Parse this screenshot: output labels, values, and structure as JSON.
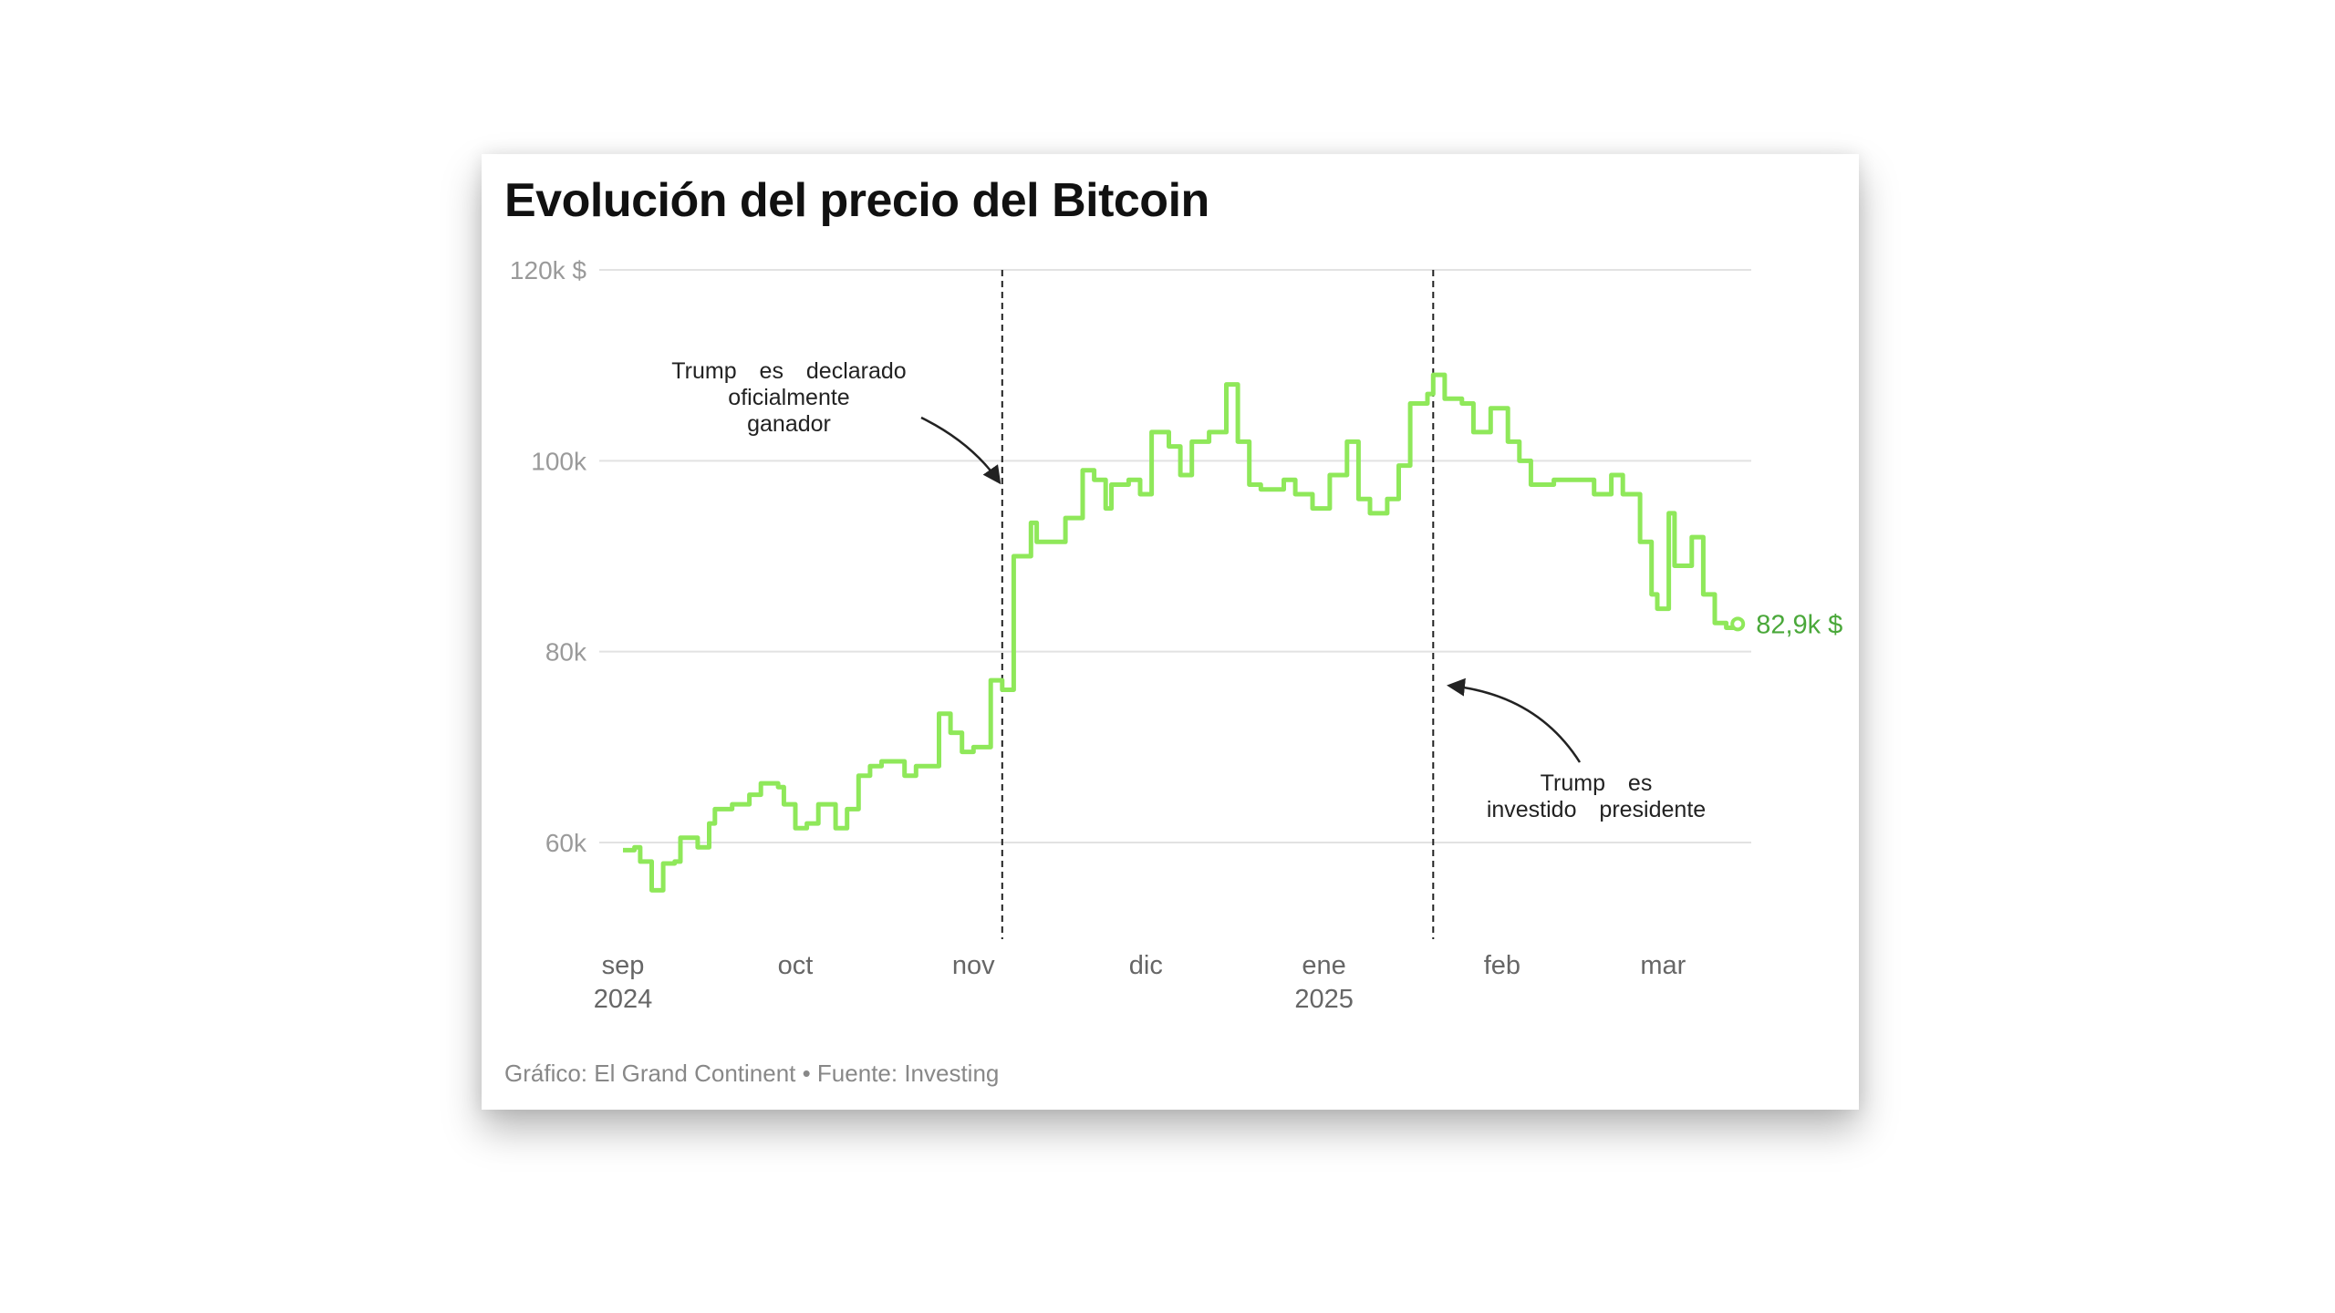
{
  "title": "Evolución del precio del Bitcoin",
  "footer": "Gráfico: El Grand Continent • Fuente: Investing",
  "chart_data": {
    "type": "line",
    "step": true,
    "title": "Evolución del precio del Bitcoin",
    "ylabel": "",
    "xlabel": "",
    "ylim": [
      50,
      120
    ],
    "yticks": [
      {
        "value": 120,
        "label": "120k $"
      },
      {
        "value": 100,
        "label": "100k"
      },
      {
        "value": 80,
        "label": "80k"
      },
      {
        "value": 60,
        "label": "60k"
      }
    ],
    "xticks": [
      {
        "date": "2024-09-01",
        "label": "sep",
        "year": "2024"
      },
      {
        "date": "2024-10-01",
        "label": "oct"
      },
      {
        "date": "2024-11-01",
        "label": "nov"
      },
      {
        "date": "2024-12-01",
        "label": "dic"
      },
      {
        "date": "2025-01-01",
        "label": "ene",
        "year": "2025"
      },
      {
        "date": "2025-02-01",
        "label": "feb"
      },
      {
        "date": "2025-03-01",
        "label": "mar"
      }
    ],
    "grid": true,
    "line_color": "#8fe85a",
    "label_color": "#4aa83a",
    "unit": "k $",
    "points": [
      [
        "2024-09-01",
        59.2
      ],
      [
        "2024-09-03",
        59.5
      ],
      [
        "2024-09-04",
        58
      ],
      [
        "2024-09-06",
        55
      ],
      [
        "2024-09-08",
        57.8
      ],
      [
        "2024-09-10",
        58
      ],
      [
        "2024-09-11",
        60.5
      ],
      [
        "2024-09-14",
        59.5
      ],
      [
        "2024-09-16",
        62
      ],
      [
        "2024-09-17",
        63.5
      ],
      [
        "2024-09-20",
        64
      ],
      [
        "2024-09-23",
        65
      ],
      [
        "2024-09-25",
        66.2
      ],
      [
        "2024-09-28",
        65.8
      ],
      [
        "2024-09-29",
        64
      ],
      [
        "2024-10-01",
        61.5
      ],
      [
        "2024-10-03",
        62
      ],
      [
        "2024-10-05",
        64
      ],
      [
        "2024-10-08",
        61.5
      ],
      [
        "2024-10-10",
        63.5
      ],
      [
        "2024-10-12",
        67
      ],
      [
        "2024-10-14",
        68
      ],
      [
        "2024-10-16",
        68.5
      ],
      [
        "2024-10-18",
        68.5
      ],
      [
        "2024-10-20",
        67
      ],
      [
        "2024-10-22",
        68
      ],
      [
        "2024-10-24",
        68
      ],
      [
        "2024-10-26",
        73.5
      ],
      [
        "2024-10-28",
        71.5
      ],
      [
        "2024-10-30",
        69.5
      ],
      [
        "2024-11-01",
        70
      ],
      [
        "2024-11-04",
        77
      ],
      [
        "2024-11-06",
        76
      ],
      [
        "2024-11-08",
        90
      ],
      [
        "2024-11-11",
        93.5
      ],
      [
        "2024-11-12",
        91.5
      ],
      [
        "2024-11-15",
        91.5
      ],
      [
        "2024-11-17",
        94
      ],
      [
        "2024-11-20",
        99
      ],
      [
        "2024-11-22",
        98
      ],
      [
        "2024-11-24",
        95
      ],
      [
        "2024-11-25",
        97.5
      ],
      [
        "2024-11-28",
        98
      ],
      [
        "2024-11-30",
        96.5
      ],
      [
        "2024-12-02",
        103
      ],
      [
        "2024-12-05",
        101.5
      ],
      [
        "2024-12-07",
        98.5
      ],
      [
        "2024-12-09",
        102
      ],
      [
        "2024-12-12",
        103
      ],
      [
        "2024-12-15",
        108
      ],
      [
        "2024-12-17",
        102
      ],
      [
        "2024-12-19",
        97.5
      ],
      [
        "2024-12-21",
        97
      ],
      [
        "2024-12-25",
        98
      ],
      [
        "2024-12-27",
        96.5
      ],
      [
        "2024-12-30",
        95
      ],
      [
        "2025-01-02",
        98.5
      ],
      [
        "2025-01-05",
        102
      ],
      [
        "2025-01-07",
        96
      ],
      [
        "2025-01-09",
        94.5
      ],
      [
        "2025-01-12",
        96
      ],
      [
        "2025-01-14",
        99.5
      ],
      [
        "2025-01-16",
        106
      ],
      [
        "2025-01-19",
        107
      ],
      [
        "2025-01-20",
        109
      ],
      [
        "2025-01-22",
        106.5
      ],
      [
        "2025-01-25",
        106
      ],
      [
        "2025-01-27",
        103
      ],
      [
        "2025-01-30",
        105.5
      ],
      [
        "2025-02-02",
        102
      ],
      [
        "2025-02-04",
        100
      ],
      [
        "2025-02-06",
        97.5
      ],
      [
        "2025-02-10",
        98
      ],
      [
        "2025-02-14",
        98
      ],
      [
        "2025-02-17",
        96.5
      ],
      [
        "2025-02-20",
        98.5
      ],
      [
        "2025-02-22",
        96.5
      ],
      [
        "2025-02-25",
        91.5
      ],
      [
        "2025-02-27",
        86
      ],
      [
        "2025-02-28",
        84.5
      ],
      [
        "2025-03-02",
        94.5
      ],
      [
        "2025-03-03",
        89
      ],
      [
        "2025-03-06",
        92
      ],
      [
        "2025-03-08",
        86
      ],
      [
        "2025-03-10",
        83
      ],
      [
        "2025-03-12",
        82.5
      ],
      [
        "2025-03-14",
        82.9
      ]
    ],
    "end_label": "82,9k $",
    "annotations": [
      {
        "date": "2024-11-06",
        "lines": [
          "Trump es declarado",
          "oficialmente",
          "ganador"
        ]
      },
      {
        "date": "2025-01-20",
        "lines": [
          "Trump es",
          "investido presidente"
        ]
      }
    ]
  }
}
